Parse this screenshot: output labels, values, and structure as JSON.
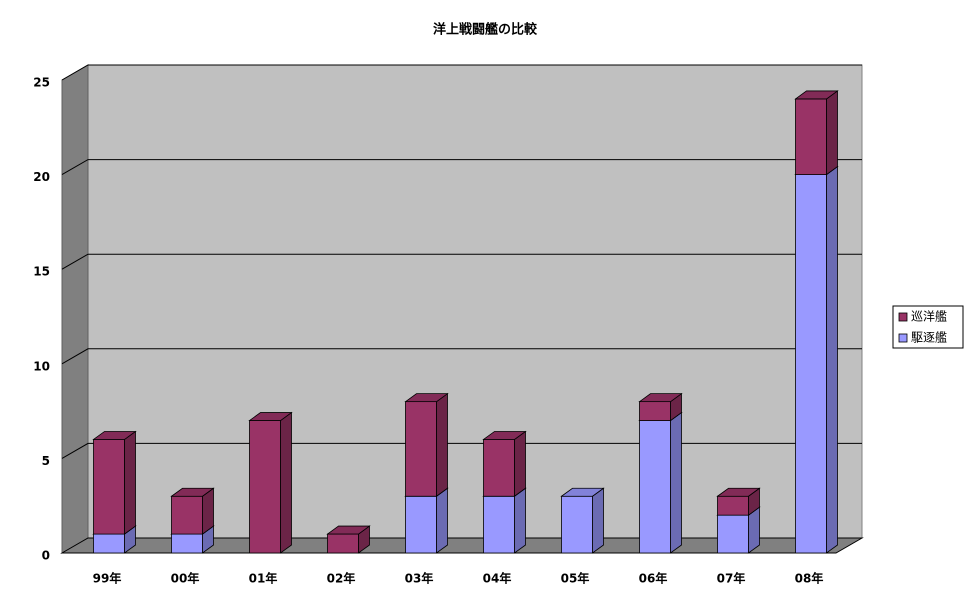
{
  "chart_data": {
    "type": "bar3d_stacked",
    "title": "洋上戦闘艦の比較",
    "categories": [
      "99年",
      "00年",
      "01年",
      "02年",
      "03年",
      "04年",
      "05年",
      "06年",
      "07年",
      "08年"
    ],
    "series": [
      {
        "name": "巡洋艦",
        "color": "#993366",
        "values": [
          5,
          2,
          7,
          1,
          5,
          3,
          0,
          1,
          1,
          4
        ]
      },
      {
        "name": "駆逐艦",
        "color": "#9999ff",
        "values": [
          1,
          1,
          0,
          0,
          3,
          3,
          3,
          7,
          2,
          20
        ]
      }
    ],
    "ylim": [
      0,
      25
    ],
    "yticks": [
      0,
      5,
      10,
      15,
      20,
      25
    ],
    "grid": true,
    "legend": "right"
  }
}
